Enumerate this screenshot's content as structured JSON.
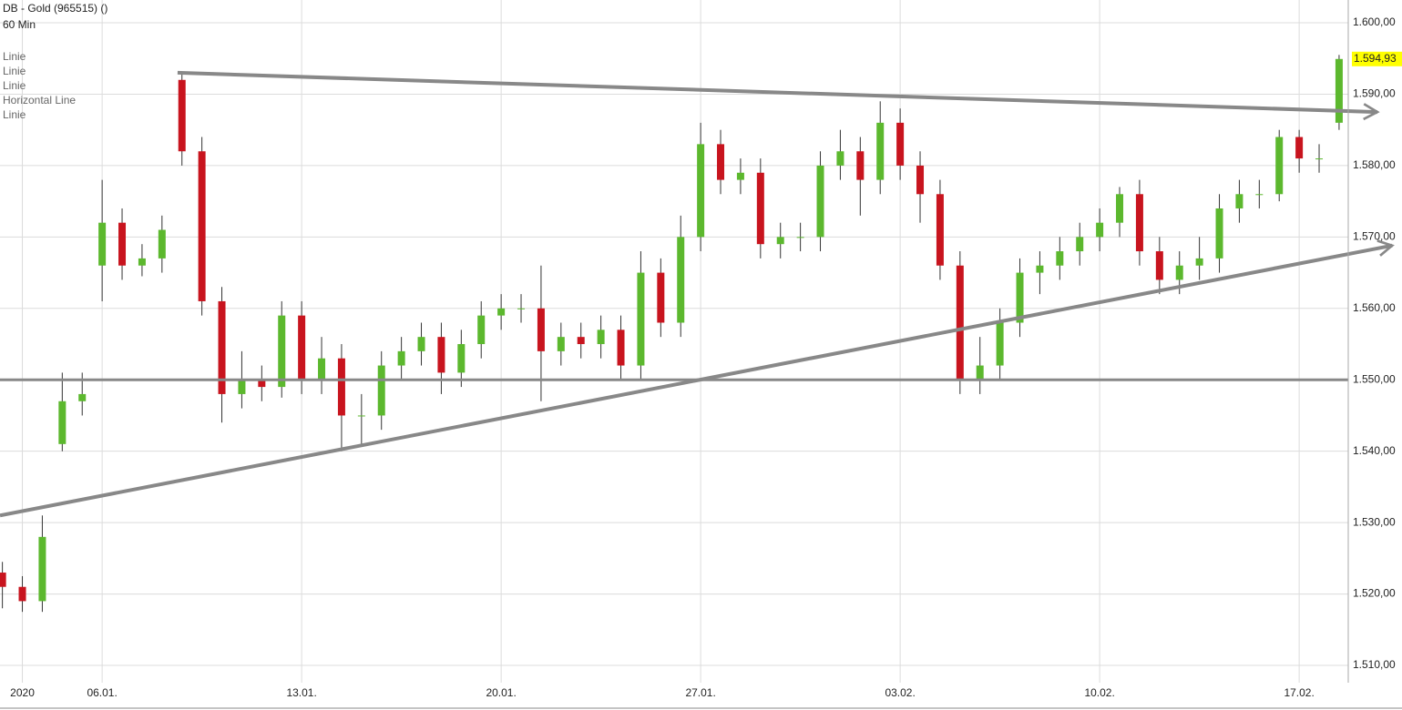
{
  "chart_data": {
    "type": "candlestick",
    "title": "DB - Gold (965515) ()",
    "subtitle": "60 Min",
    "legend": [
      "Linie",
      "Linie",
      "Linie",
      "Horizontal Line",
      "Linie"
    ],
    "x": [
      2.5,
      3,
      3.5,
      4,
      4.5,
      5,
      5.5,
      6,
      6.5,
      7,
      7.5,
      8,
      8.5,
      9,
      9.5,
      10,
      10.5,
      11,
      11.5,
      12,
      12.5,
      13,
      13.5,
      14,
      14.5,
      15,
      15.5,
      16,
      16.5,
      17,
      17.5,
      18,
      18.5,
      19,
      19.5,
      20,
      20.5,
      21,
      21.5,
      22,
      22.5,
      23,
      23.5,
      24,
      24.5,
      25,
      25.5,
      26,
      26.5,
      27,
      27.5,
      28,
      28.5,
      29,
      29.5,
      30,
      30.5,
      31,
      31.5,
      32,
      32.5,
      33,
      33.5,
      34,
      34.5,
      35,
      35.5,
      36
    ],
    "open": [
      1523,
      1521,
      1519,
      1541,
      1547,
      1566,
      1572,
      1566,
      1567,
      1592,
      1582,
      1561,
      1548,
      1550,
      1549,
      1559,
      1550,
      1553,
      1545,
      1545,
      1552,
      1554,
      1556,
      1551,
      1555,
      1559,
      1560,
      1560,
      1554,
      1556,
      1555,
      1557,
      1552,
      1565,
      1558,
      1570,
      1583,
      1578,
      1579,
      1569,
      1570,
      1570,
      1580,
      1582,
      1578,
      1586,
      1580,
      1576,
      1566,
      1550,
      1552,
      1558,
      1565,
      1566,
      1568,
      1570,
      1572,
      1576,
      1568,
      1564,
      1566,
      1567,
      1574,
      1576,
      1576,
      1584,
      1581,
      1586
    ],
    "high": [
      1524.5,
      1522.5,
      1531,
      1551,
      1551,
      1578,
      1574,
      1569,
      1573,
      1593,
      1584,
      1563,
      1554,
      1552,
      1561,
      1561,
      1556,
      1555,
      1548,
      1554,
      1556,
      1558,
      1558,
      1557,
      1561,
      1562,
      1562,
      1566,
      1558,
      1558,
      1559,
      1559,
      1568,
      1567,
      1573,
      1586,
      1585,
      1581,
      1581,
      1572,
      1572,
      1582,
      1585,
      1584,
      1589,
      1588,
      1582,
      1578,
      1568,
      1556,
      1560,
      1567,
      1568,
      1570,
      1572,
      1574,
      1577,
      1578,
      1570,
      1568,
      1570,
      1576,
      1578,
      1578,
      1585,
      1585,
      1583,
      1595.5
    ],
    "low": [
      1518,
      1517.5,
      1517.5,
      1540,
      1545,
      1561,
      1564,
      1564.5,
      1565,
      1580,
      1559,
      1544,
      1546,
      1547,
      1547.5,
      1548,
      1548,
      1540,
      1541,
      1543,
      1550,
      1552,
      1548,
      1549,
      1553,
      1557,
      1558,
      1547,
      1552,
      1553,
      1553,
      1550,
      1550,
      1556,
      1556,
      1568,
      1576,
      1576,
      1567,
      1567,
      1568,
      1568,
      1578,
      1573,
      1576,
      1578,
      1572,
      1564,
      1548,
      1548,
      1550,
      1556,
      1562,
      1564,
      1566,
      1568,
      1570,
      1566,
      1562,
      1562,
      1564,
      1565,
      1572,
      1574,
      1575,
      1579,
      1579,
      1585
    ],
    "close": [
      1521,
      1519,
      1528,
      1547,
      1548,
      1572,
      1566,
      1567,
      1571,
      1582,
      1561,
      1548,
      1550,
      1549,
      1559,
      1550,
      1553,
      1545,
      1545,
      1552,
      1554,
      1556,
      1551,
      1555,
      1559,
      1560,
      1560,
      1554,
      1556,
      1555,
      1557,
      1552,
      1565,
      1558,
      1570,
      1583,
      1578,
      1579,
      1569,
      1570,
      1570,
      1580,
      1582,
      1578,
      1586,
      1580,
      1576,
      1566,
      1550,
      1552,
      1558,
      1565,
      1566,
      1568,
      1570,
      1572,
      1576,
      1568,
      1564,
      1566,
      1567,
      1574,
      1576,
      1576,
      1584,
      1581,
      1581,
      1594.93
    ],
    "up_color": "#5cb82e",
    "down_color": "#c8141e",
    "last_price": {
      "value": 1594.93,
      "label": "1.594,93"
    },
    "trendlines": [
      {
        "x": [
          6.89,
          36.96
        ],
        "y": [
          1593,
          1587.5
        ]
      },
      {
        "x": [
          2.44,
          37.33
        ],
        "y": [
          1531,
          1568.8
        ]
      }
    ],
    "hline": 1550,
    "xlim": [
      2.44,
      36.23
    ],
    "xticks": [
      {
        "value": 3,
        "label": "2020"
      },
      {
        "value": 5,
        "label": "06.01."
      },
      {
        "value": 10,
        "label": "13.01."
      },
      {
        "value": 15,
        "label": "20.01."
      },
      {
        "value": 20,
        "label": "27.01."
      },
      {
        "value": 25,
        "label": "03.02."
      },
      {
        "value": 30,
        "label": "10.02."
      },
      {
        "value": 35,
        "label": "17.02."
      }
    ],
    "ylim": [
      1507.58,
      1603.19
    ],
    "yticks": [
      {
        "value": 1510,
        "label": "1.510,00"
      },
      {
        "value": 1520,
        "label": "1.520,00"
      },
      {
        "value": 1530,
        "label": "1.530,00"
      },
      {
        "value": 1540,
        "label": "1.540,00"
      },
      {
        "value": 1550,
        "label": "1.550,00"
      },
      {
        "value": 1560,
        "label": "1.560,00"
      },
      {
        "value": 1570,
        "label": "1.570,00"
      },
      {
        "value": 1580,
        "label": "1.580,00"
      },
      {
        "value": 1590,
        "label": "1.590,00"
      },
      {
        "value": 1600,
        "label": "1.600,00"
      }
    ],
    "grid": true
  }
}
